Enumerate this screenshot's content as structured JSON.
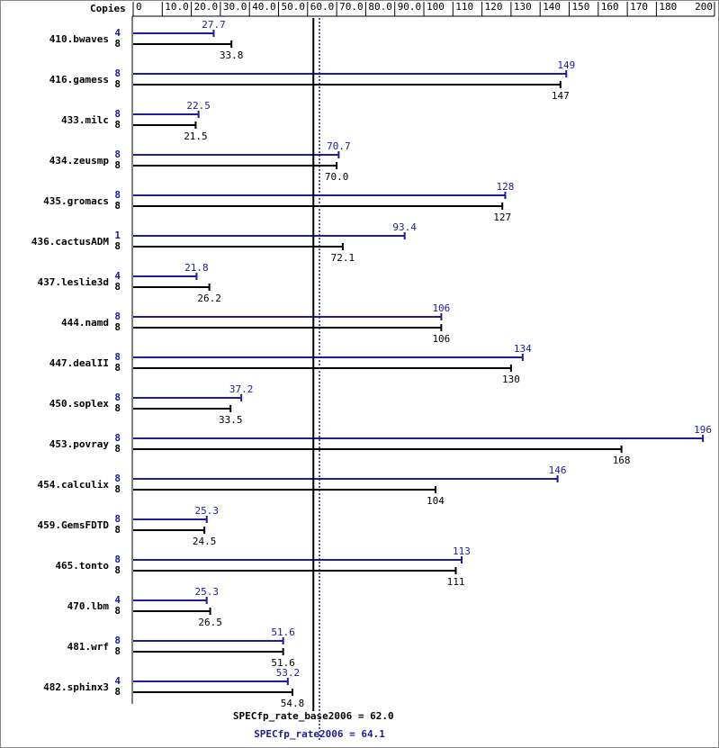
{
  "chart_data": {
    "type": "bar",
    "orientation": "horizontal",
    "x_axis_label": "Copies",
    "categories": [
      "410.bwaves",
      "416.gamess",
      "433.milc",
      "434.zeusmp",
      "435.gromacs",
      "436.cactusADM",
      "437.leslie3d",
      "444.namd",
      "447.dealII",
      "450.soplex",
      "453.povray",
      "454.calculix",
      "459.GemsFDTD",
      "465.tonto",
      "470.lbm",
      "481.wrf",
      "482.sphinx3"
    ],
    "series": [
      {
        "color": "#1c1c9c",
        "copies": [
          4,
          8,
          8,
          8,
          8,
          1,
          4,
          8,
          8,
          8,
          8,
          8,
          8,
          8,
          4,
          8,
          4
        ],
        "values": [
          27.7,
          149,
          22.5,
          70.7,
          128,
          93.4,
          21.8,
          106,
          134,
          37.2,
          196,
          146,
          25.3,
          113,
          25.3,
          51.6,
          53.2
        ]
      },
      {
        "color": "#000000",
        "copies": [
          8,
          8,
          8,
          8,
          8,
          8,
          8,
          8,
          8,
          8,
          8,
          8,
          8,
          8,
          8,
          8,
          8
        ],
        "values": [
          33.8,
          147,
          21.5,
          70,
          127,
          72.1,
          26.2,
          106,
          130,
          33.5,
          168,
          104,
          24.5,
          111,
          26.5,
          51.6,
          54.8
        ],
        "value_labels": [
          "33.8",
          "147",
          "21.5",
          "70.0",
          "127",
          "72.1",
          "26.2",
          "106",
          "130",
          "33.5",
          "168",
          "104",
          "24.5",
          "111",
          "26.5",
          "51.6",
          "54.8"
        ]
      }
    ],
    "xlim": [
      0,
      200
    ],
    "xticks": [
      0,
      {
        "value": 10,
        "label": "10.0"
      },
      {
        "value": 20,
        "label": "20.0"
      },
      {
        "value": 30,
        "label": "30.0"
      },
      {
        "value": 40,
        "label": "40.0"
      },
      {
        "value": 50,
        "label": "50.0"
      },
      {
        "value": 60,
        "label": "60.0"
      },
      {
        "value": 70,
        "label": "70.0"
      },
      {
        "value": 80,
        "label": "80.0"
      },
      {
        "value": 90,
        "label": "90.0"
      },
      100,
      110,
      120,
      130,
      140,
      150,
      160,
      170,
      180,
      200
    ],
    "reference_lines": [
      {
        "value": 62.0,
        "label": "SPECfp_rate_base2006 = 62.0",
        "color": "#000000",
        "dashed": false
      },
      {
        "value": 64.1,
        "label": "SPECfp_rate2006 = 64.1",
        "color": "#1c1c9c",
        "dashed": true
      }
    ]
  }
}
